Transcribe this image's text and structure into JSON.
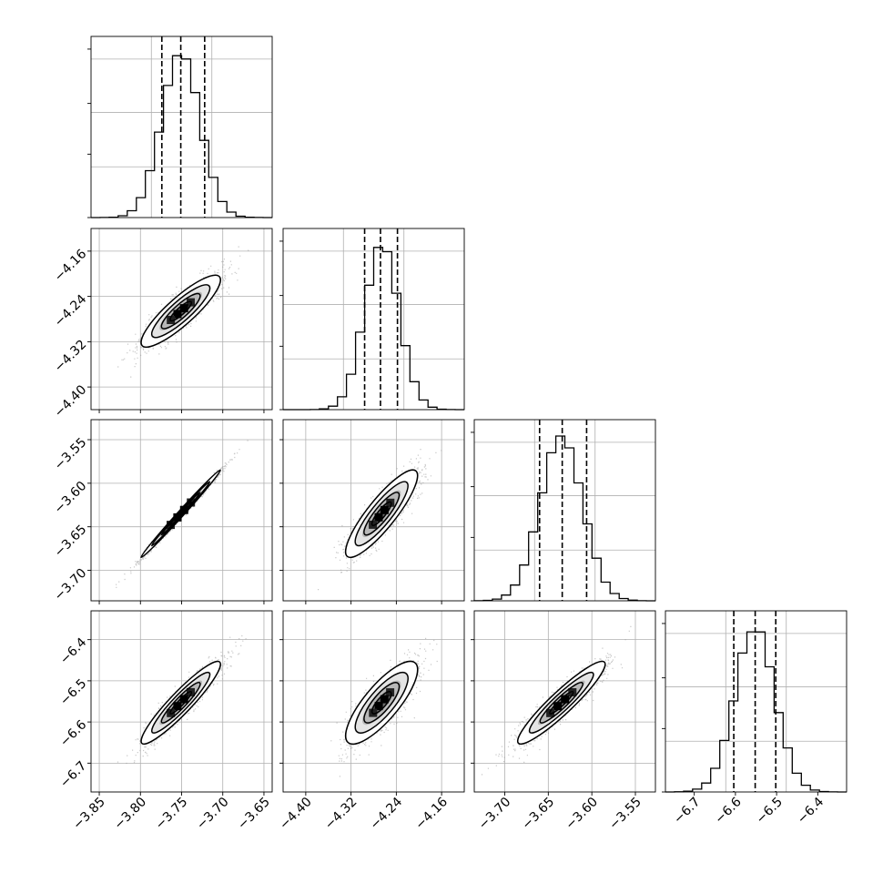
{
  "chart_data": {
    "type": "scatter",
    "plot_kind": "corner",
    "grid": true,
    "parameters": [
      {
        "range": [
          -3.86,
          -3.64
        ],
        "ticks": [
          -3.85,
          -3.8,
          -3.75,
          -3.7,
          -3.65
        ],
        "tick_labels": [
          "−3.85",
          "−3.80",
          "−3.75",
          "−3.70",
          "−3.65"
        ],
        "mean": -3.751,
        "sd": 0.0235,
        "quantiles": [
          -3.774,
          -3.751,
          -3.722
        ]
      },
      {
        "range": [
          -4.44,
          -4.12
        ],
        "ticks": [
          -4.4,
          -4.32,
          -4.24,
          -4.16
        ],
        "tick_labels": [
          "−4.40",
          "−4.32",
          "−4.24",
          "−4.16"
        ],
        "mean": -4.266,
        "sd": 0.031,
        "quantiles": [
          -4.296,
          -4.268,
          -4.238
        ]
      },
      {
        "range": [
          -3.735,
          -3.527
        ],
        "ticks": [
          -3.7,
          -3.65,
          -3.6,
          -3.55
        ],
        "tick_labels": [
          "−3.70",
          "−3.65",
          "−3.60",
          "−3.55"
        ],
        "mean": -3.635,
        "sd": 0.0245,
        "quantiles": [
          -3.66,
          -3.634,
          -3.606
        ]
      },
      {
        "range": [
          -6.77,
          -6.33
        ],
        "ticks": [
          -6.7,
          -6.6,
          -6.5,
          -6.4
        ],
        "tick_labels": [
          "−6.7",
          "−6.6",
          "−6.5",
          "−6.4"
        ],
        "mean": -6.553,
        "sd": 0.049,
        "quantiles": [
          -6.604,
          -6.552,
          -6.502
        ]
      }
    ],
    "correlations": [
      [
        1.0,
        0.87,
        0.995,
        0.93
      ],
      [
        0.87,
        1.0,
        0.87,
        0.8
      ],
      [
        0.995,
        0.87,
        1.0,
        0.93
      ],
      [
        0.93,
        0.8,
        0.93,
        1.0
      ]
    ],
    "contour_levels_sigma": [
      0.5,
      1.0,
      1.5,
      2.0
    ]
  }
}
